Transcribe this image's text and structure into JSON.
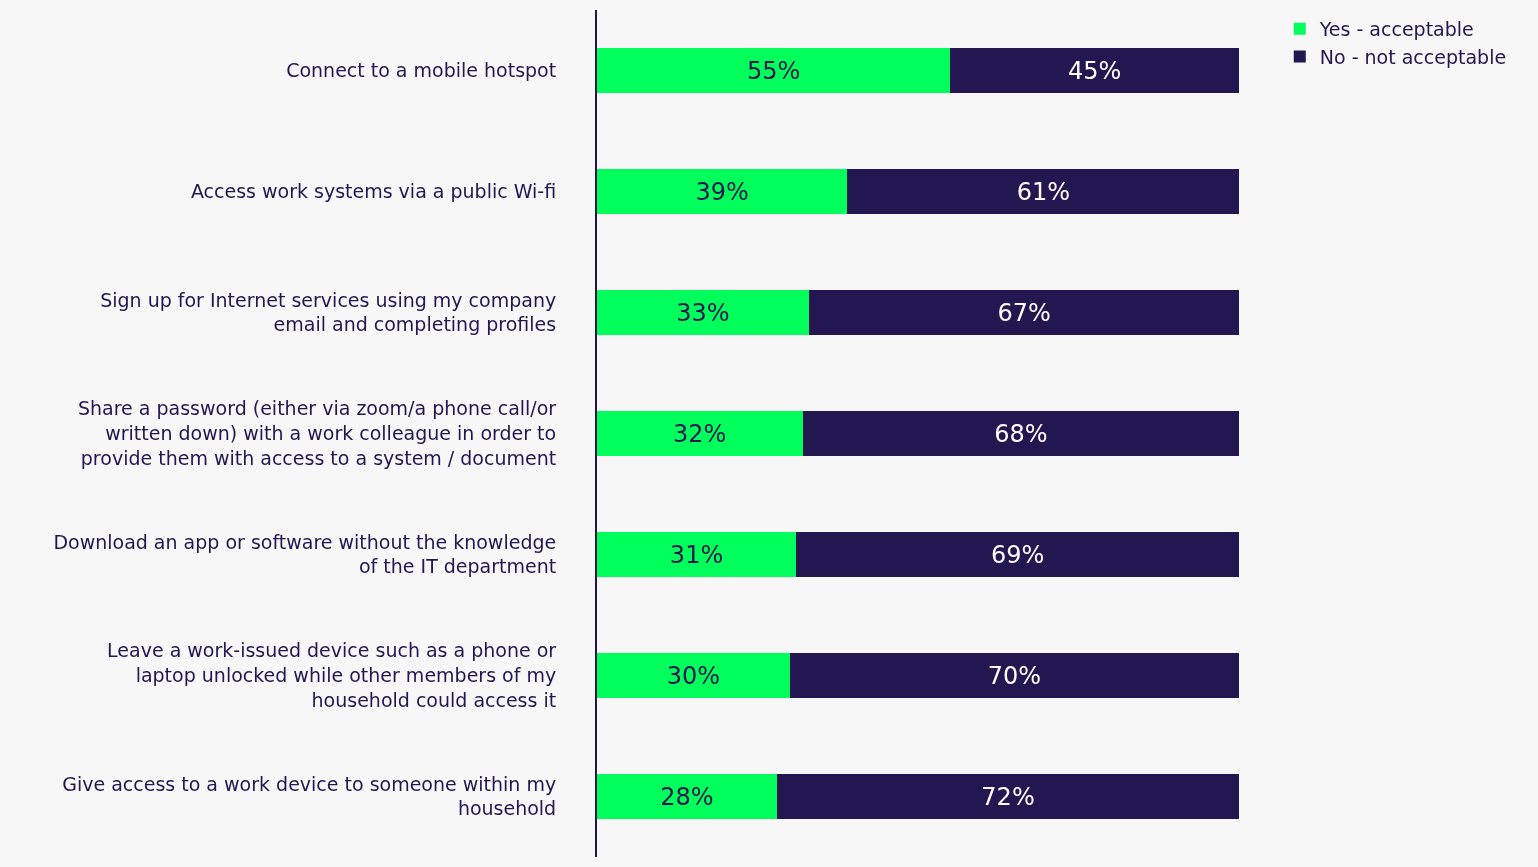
{
  "chart_data": {
    "type": "bar",
    "orientation": "horizontal",
    "stacked": true,
    "tick_labels": "y",
    "legend": "top right",
    "grid": false,
    "categories": [
      "Connect to a mobile hotspot",
      "Access work systems via a public Wi-fi",
      "Sign up for Internet services using my company email and completing profiles",
      "Share a password (either via zoom/a phone call/or written down) with a work colleague in order to provide them with access to a system / document",
      "Download an app or software without the knowledge of the IT department",
      "Leave a work-issued device such as a phone or laptop unlocked while other members of my household could access it",
      "Give access to a work device to someone within my household"
    ],
    "series": [
      {
        "name": "Yes - acceptable",
        "color": "#00ff5a",
        "values": [
          55,
          39,
          33,
          32,
          31,
          30,
          28
        ],
        "value_labels": [
          "55%",
          "39%",
          "33%",
          "32%",
          "31%",
          "30%",
          "28%"
        ]
      },
      {
        "name": "No - not acceptable",
        "color": "#231651",
        "values": [
          45,
          61,
          67,
          68,
          69,
          70,
          72
        ],
        "value_labels": [
          "45%",
          "61%",
          "67%",
          "68%",
          "69%",
          "70%",
          "72%"
        ]
      }
    ]
  }
}
